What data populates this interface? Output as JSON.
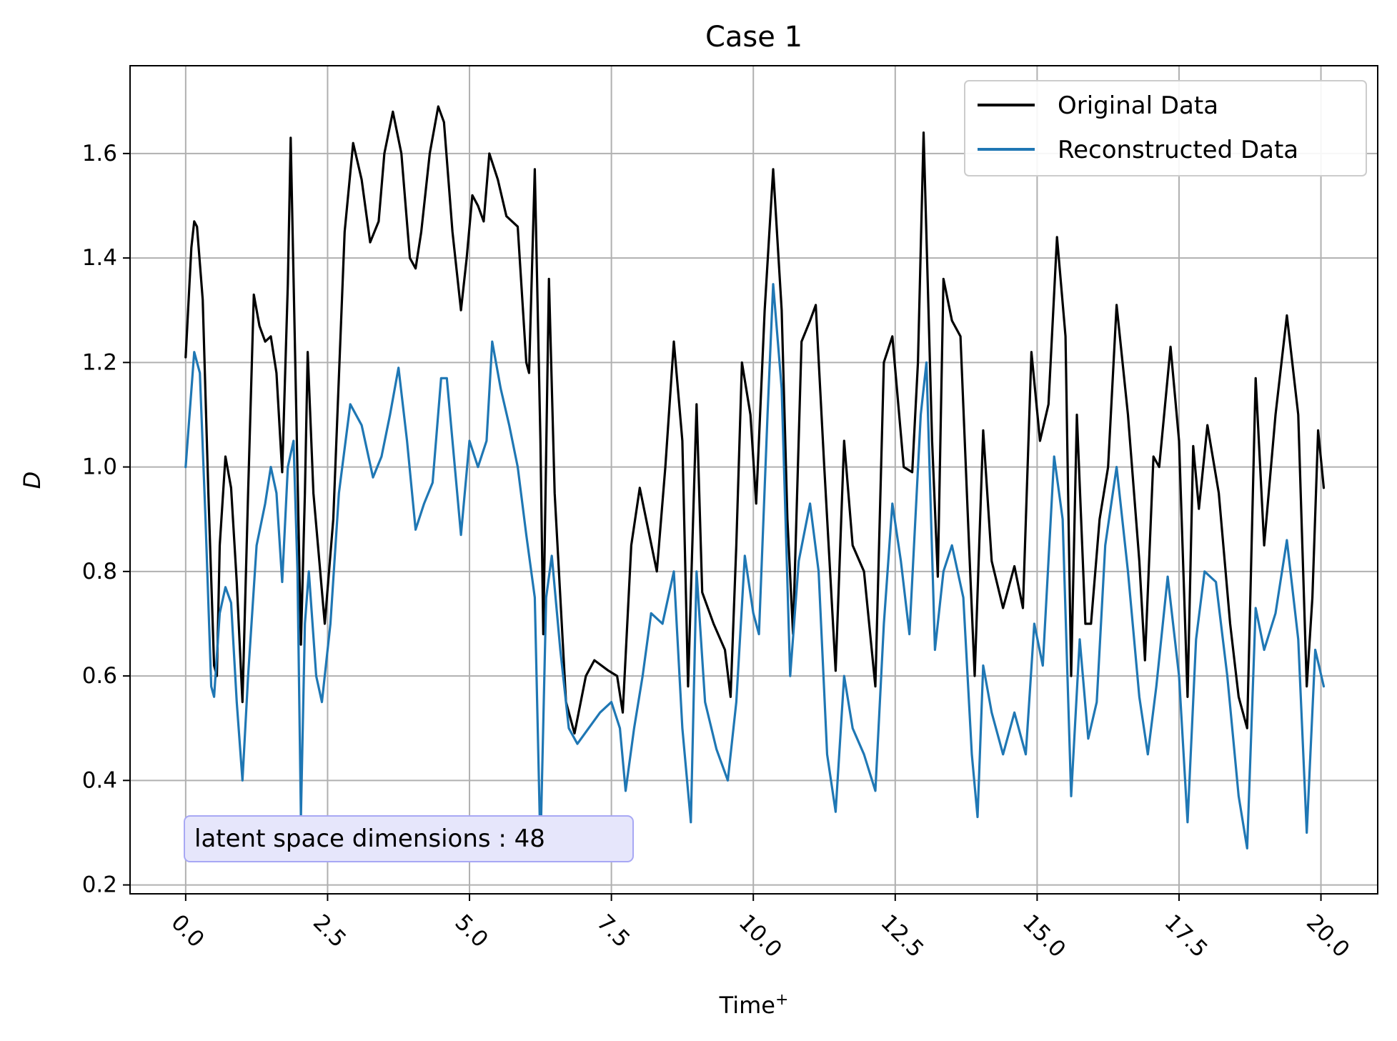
{
  "chart_data": {
    "type": "line",
    "title": "Case 1",
    "xlabel": "Time",
    "xlabel_sup": "+",
    "ylabel": "D",
    "xlim": [
      -0.98,
      21.0
    ],
    "ylim": [
      0.183,
      1.768
    ],
    "xticks": [
      0.0,
      2.5,
      5.0,
      7.5,
      10.0,
      12.5,
      15.0,
      17.5,
      20.0
    ],
    "xtick_labels": [
      "0.0",
      "2.5",
      "5.0",
      "7.5",
      "10.0",
      "12.5",
      "15.0",
      "17.5",
      "20.0"
    ],
    "yticks": [
      0.2,
      0.4,
      0.6,
      0.8,
      1.0,
      1.2,
      1.4,
      1.6
    ],
    "ytick_labels": [
      "0.2",
      "0.4",
      "0.6",
      "0.8",
      "1.0",
      "1.2",
      "1.4",
      "1.6"
    ],
    "xtick_rotation_deg": -45,
    "grid": true,
    "legend_position": "upper-right",
    "annotation": "latent space dimensions : 48",
    "series": [
      {
        "name": "Original Data",
        "color": "#000000",
        "points": [
          [
            0.0,
            1.21
          ],
          [
            0.1,
            1.42
          ],
          [
            0.15,
            1.47
          ],
          [
            0.2,
            1.46
          ],
          [
            0.3,
            1.32
          ],
          [
            0.4,
            0.95
          ],
          [
            0.5,
            0.62
          ],
          [
            0.55,
            0.6
          ],
          [
            0.6,
            0.85
          ],
          [
            0.7,
            1.02
          ],
          [
            0.8,
            0.96
          ],
          [
            0.9,
            0.78
          ],
          [
            1.0,
            0.55
          ],
          [
            1.1,
            0.95
          ],
          [
            1.2,
            1.33
          ],
          [
            1.3,
            1.27
          ],
          [
            1.4,
            1.24
          ],
          [
            1.5,
            1.25
          ],
          [
            1.6,
            1.18
          ],
          [
            1.7,
            0.99
          ],
          [
            1.8,
            1.35
          ],
          [
            1.85,
            1.63
          ],
          [
            1.95,
            1.1
          ],
          [
            2.03,
            0.66
          ],
          [
            2.1,
            0.95
          ],
          [
            2.15,
            1.22
          ],
          [
            2.25,
            0.95
          ],
          [
            2.45,
            0.7
          ],
          [
            2.6,
            0.9
          ],
          [
            2.8,
            1.45
          ],
          [
            2.95,
            1.62
          ],
          [
            3.1,
            1.55
          ],
          [
            3.25,
            1.43
          ],
          [
            3.4,
            1.47
          ],
          [
            3.5,
            1.6
          ],
          [
            3.65,
            1.68
          ],
          [
            3.8,
            1.6
          ],
          [
            3.95,
            1.4
          ],
          [
            4.05,
            1.38
          ],
          [
            4.15,
            1.45
          ],
          [
            4.3,
            1.6
          ],
          [
            4.45,
            1.69
          ],
          [
            4.55,
            1.66
          ],
          [
            4.7,
            1.45
          ],
          [
            4.85,
            1.3
          ],
          [
            4.95,
            1.4
          ],
          [
            5.05,
            1.52
          ],
          [
            5.15,
            1.5
          ],
          [
            5.25,
            1.47
          ],
          [
            5.35,
            1.6
          ],
          [
            5.5,
            1.55
          ],
          [
            5.65,
            1.48
          ],
          [
            5.85,
            1.46
          ],
          [
            6.0,
            1.2
          ],
          [
            6.05,
            1.18
          ],
          [
            6.15,
            1.57
          ],
          [
            6.25,
            1.05
          ],
          [
            6.3,
            0.68
          ],
          [
            6.4,
            1.36
          ],
          [
            6.5,
            0.95
          ],
          [
            6.7,
            0.55
          ],
          [
            6.85,
            0.49
          ],
          [
            7.05,
            0.6
          ],
          [
            7.2,
            0.63
          ],
          [
            7.45,
            0.61
          ],
          [
            7.6,
            0.6
          ],
          [
            7.7,
            0.53
          ],
          [
            7.85,
            0.85
          ],
          [
            8.0,
            0.96
          ],
          [
            8.15,
            0.88
          ],
          [
            8.3,
            0.8
          ],
          [
            8.45,
            1.0
          ],
          [
            8.6,
            1.24
          ],
          [
            8.75,
            1.05
          ],
          [
            8.85,
            0.58
          ],
          [
            9.0,
            1.12
          ],
          [
            9.1,
            0.76
          ],
          [
            9.3,
            0.7
          ],
          [
            9.5,
            0.65
          ],
          [
            9.6,
            0.56
          ],
          [
            9.7,
            0.85
          ],
          [
            9.8,
            1.2
          ],
          [
            9.95,
            1.1
          ],
          [
            10.05,
            0.93
          ],
          [
            10.2,
            1.3
          ],
          [
            10.35,
            1.57
          ],
          [
            10.5,
            1.3
          ],
          [
            10.6,
            0.9
          ],
          [
            10.7,
            0.68
          ],
          [
            10.85,
            1.24
          ],
          [
            11.0,
            1.28
          ],
          [
            11.1,
            1.31
          ],
          [
            11.25,
            1.0
          ],
          [
            11.45,
            0.61
          ],
          [
            11.6,
            1.05
          ],
          [
            11.75,
            0.85
          ],
          [
            11.95,
            0.8
          ],
          [
            12.15,
            0.58
          ],
          [
            12.3,
            1.2
          ],
          [
            12.45,
            1.25
          ],
          [
            12.65,
            1.0
          ],
          [
            12.8,
            0.99
          ],
          [
            12.9,
            1.2
          ],
          [
            13.0,
            1.64
          ],
          [
            13.15,
            1.05
          ],
          [
            13.25,
            0.79
          ],
          [
            13.35,
            1.36
          ],
          [
            13.5,
            1.28
          ],
          [
            13.65,
            1.25
          ],
          [
            13.8,
            0.85
          ],
          [
            13.9,
            0.6
          ],
          [
            14.05,
            1.07
          ],
          [
            14.2,
            0.82
          ],
          [
            14.4,
            0.73
          ],
          [
            14.6,
            0.81
          ],
          [
            14.75,
            0.73
          ],
          [
            14.9,
            1.22
          ],
          [
            15.05,
            1.05
          ],
          [
            15.2,
            1.12
          ],
          [
            15.35,
            1.44
          ],
          [
            15.5,
            1.25
          ],
          [
            15.6,
            0.6
          ],
          [
            15.7,
            1.1
          ],
          [
            15.85,
            0.7
          ],
          [
            15.95,
            0.7
          ],
          [
            16.1,
            0.9
          ],
          [
            16.25,
            1.0
          ],
          [
            16.4,
            1.31
          ],
          [
            16.6,
            1.1
          ],
          [
            16.8,
            0.82
          ],
          [
            16.9,
            0.63
          ],
          [
            17.05,
            1.02
          ],
          [
            17.15,
            1.0
          ],
          [
            17.35,
            1.23
          ],
          [
            17.5,
            1.05
          ],
          [
            17.65,
            0.56
          ],
          [
            17.75,
            1.04
          ],
          [
            17.85,
            0.92
          ],
          [
            18.0,
            1.08
          ],
          [
            18.2,
            0.95
          ],
          [
            18.4,
            0.7
          ],
          [
            18.55,
            0.56
          ],
          [
            18.7,
            0.5
          ],
          [
            18.85,
            1.17
          ],
          [
            19.0,
            0.85
          ],
          [
            19.2,
            1.1
          ],
          [
            19.4,
            1.29
          ],
          [
            19.6,
            1.1
          ],
          [
            19.75,
            0.58
          ],
          [
            19.85,
            0.75
          ],
          [
            19.95,
            1.07
          ],
          [
            20.05,
            0.96
          ]
        ]
      },
      {
        "name": "Reconstructed Data",
        "color": "#1f77b4",
        "points": [
          [
            0.0,
            1.0
          ],
          [
            0.15,
            1.22
          ],
          [
            0.25,
            1.18
          ],
          [
            0.35,
            0.9
          ],
          [
            0.45,
            0.58
          ],
          [
            0.5,
            0.56
          ],
          [
            0.6,
            0.72
          ],
          [
            0.7,
            0.77
          ],
          [
            0.8,
            0.74
          ],
          [
            0.9,
            0.55
          ],
          [
            1.0,
            0.4
          ],
          [
            1.1,
            0.6
          ],
          [
            1.25,
            0.85
          ],
          [
            1.4,
            0.93
          ],
          [
            1.5,
            1.0
          ],
          [
            1.6,
            0.95
          ],
          [
            1.7,
            0.78
          ],
          [
            1.8,
            1.0
          ],
          [
            1.9,
            1.05
          ],
          [
            1.97,
            0.8
          ],
          [
            2.03,
            0.33
          ],
          [
            2.1,
            0.7
          ],
          [
            2.17,
            0.8
          ],
          [
            2.3,
            0.6
          ],
          [
            2.4,
            0.55
          ],
          [
            2.55,
            0.7
          ],
          [
            2.7,
            0.95
          ],
          [
            2.9,
            1.12
          ],
          [
            3.1,
            1.08
          ],
          [
            3.3,
            0.98
          ],
          [
            3.45,
            1.02
          ],
          [
            3.6,
            1.1
          ],
          [
            3.75,
            1.19
          ],
          [
            3.9,
            1.05
          ],
          [
            4.05,
            0.88
          ],
          [
            4.2,
            0.93
          ],
          [
            4.35,
            0.97
          ],
          [
            4.5,
            1.17
          ],
          [
            4.6,
            1.17
          ],
          [
            4.7,
            1.05
          ],
          [
            4.85,
            0.87
          ],
          [
            5.0,
            1.05
          ],
          [
            5.15,
            1.0
          ],
          [
            5.3,
            1.05
          ],
          [
            5.4,
            1.24
          ],
          [
            5.55,
            1.15
          ],
          [
            5.7,
            1.08
          ],
          [
            5.85,
            1.0
          ],
          [
            6.0,
            0.87
          ],
          [
            6.15,
            0.75
          ],
          [
            6.25,
            0.27
          ],
          [
            6.35,
            0.75
          ],
          [
            6.45,
            0.83
          ],
          [
            6.6,
            0.65
          ],
          [
            6.75,
            0.5
          ],
          [
            6.9,
            0.47
          ],
          [
            7.1,
            0.5
          ],
          [
            7.3,
            0.53
          ],
          [
            7.5,
            0.55
          ],
          [
            7.65,
            0.5
          ],
          [
            7.75,
            0.38
          ],
          [
            7.9,
            0.5
          ],
          [
            8.05,
            0.6
          ],
          [
            8.2,
            0.72
          ],
          [
            8.4,
            0.7
          ],
          [
            8.6,
            0.8
          ],
          [
            8.75,
            0.5
          ],
          [
            8.9,
            0.32
          ],
          [
            9.0,
            0.8
          ],
          [
            9.15,
            0.55
          ],
          [
            9.35,
            0.46
          ],
          [
            9.55,
            0.4
          ],
          [
            9.7,
            0.55
          ],
          [
            9.85,
            0.83
          ],
          [
            10.0,
            0.72
          ],
          [
            10.1,
            0.68
          ],
          [
            10.25,
            1.1
          ],
          [
            10.35,
            1.35
          ],
          [
            10.5,
            1.15
          ],
          [
            10.65,
            0.6
          ],
          [
            10.8,
            0.82
          ],
          [
            11.0,
            0.93
          ],
          [
            11.15,
            0.8
          ],
          [
            11.3,
            0.45
          ],
          [
            11.45,
            0.34
          ],
          [
            11.6,
            0.6
          ],
          [
            11.75,
            0.5
          ],
          [
            11.95,
            0.45
          ],
          [
            12.15,
            0.38
          ],
          [
            12.3,
            0.7
          ],
          [
            12.45,
            0.93
          ],
          [
            12.6,
            0.82
          ],
          [
            12.75,
            0.68
          ],
          [
            12.95,
            1.1
          ],
          [
            13.05,
            1.2
          ],
          [
            13.2,
            0.65
          ],
          [
            13.35,
            0.8
          ],
          [
            13.5,
            0.85
          ],
          [
            13.7,
            0.75
          ],
          [
            13.85,
            0.45
          ],
          [
            13.95,
            0.33
          ],
          [
            14.05,
            0.62
          ],
          [
            14.2,
            0.53
          ],
          [
            14.4,
            0.45
          ],
          [
            14.6,
            0.53
          ],
          [
            14.8,
            0.45
          ],
          [
            14.95,
            0.7
          ],
          [
            15.1,
            0.62
          ],
          [
            15.3,
            1.02
          ],
          [
            15.45,
            0.9
          ],
          [
            15.6,
            0.37
          ],
          [
            15.75,
            0.67
          ],
          [
            15.9,
            0.48
          ],
          [
            16.05,
            0.55
          ],
          [
            16.2,
            0.85
          ],
          [
            16.4,
            1.0
          ],
          [
            16.6,
            0.8
          ],
          [
            16.8,
            0.56
          ],
          [
            16.95,
            0.45
          ],
          [
            17.1,
            0.58
          ],
          [
            17.3,
            0.79
          ],
          [
            17.5,
            0.6
          ],
          [
            17.65,
            0.32
          ],
          [
            17.8,
            0.67
          ],
          [
            17.95,
            0.8
          ],
          [
            18.15,
            0.78
          ],
          [
            18.35,
            0.6
          ],
          [
            18.55,
            0.37
          ],
          [
            18.7,
            0.27
          ],
          [
            18.85,
            0.73
          ],
          [
            19.0,
            0.65
          ],
          [
            19.2,
            0.72
          ],
          [
            19.4,
            0.86
          ],
          [
            19.6,
            0.67
          ],
          [
            19.75,
            0.3
          ],
          [
            19.9,
            0.65
          ],
          [
            20.05,
            0.58
          ]
        ]
      }
    ]
  }
}
